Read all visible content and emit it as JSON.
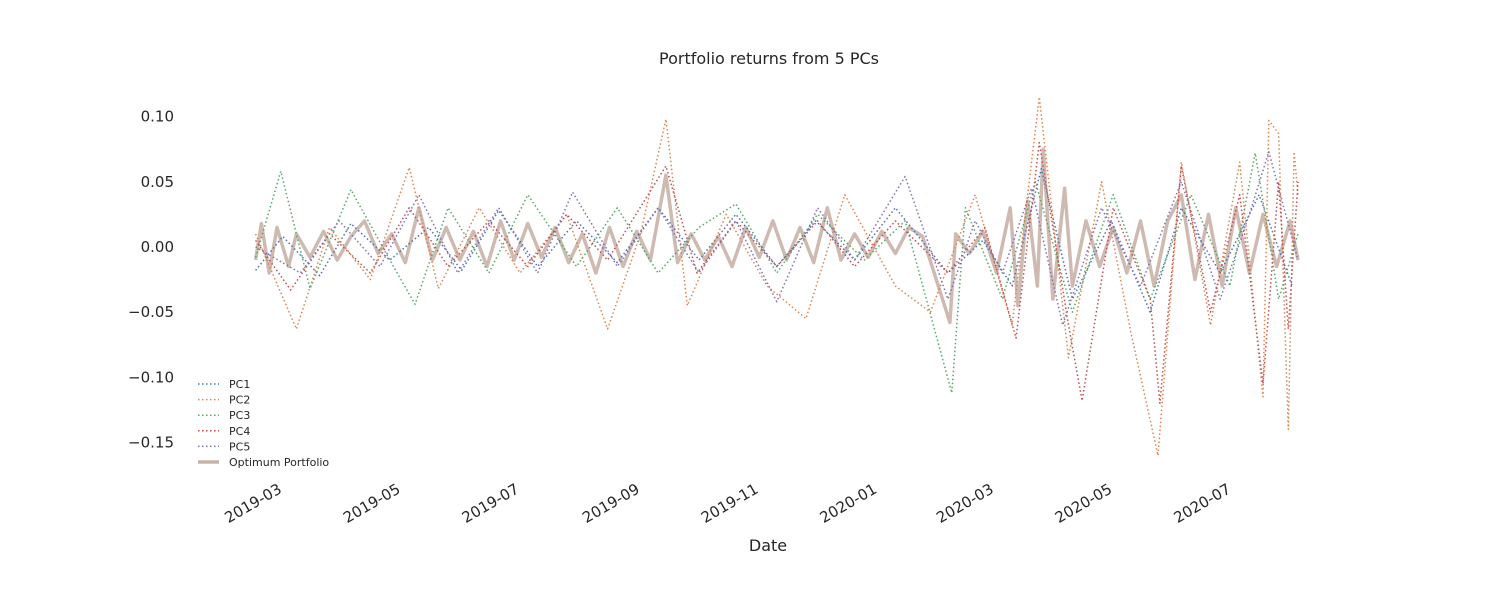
{
  "chart_data": {
    "type": "line",
    "title": "Portfolio returns from 5 PCs",
    "xlabel": "Date",
    "ylabel": "",
    "x_range": [
      "2019-02-07",
      "2020-08-04"
    ],
    "ylim": [
      -0.175,
      0.125
    ],
    "x_ticks": [
      "2019-03",
      "2019-05",
      "2019-07",
      "2019-09",
      "2019-11",
      "2020-01",
      "2020-03",
      "2020-05",
      "2020-07"
    ],
    "y_ticks": [
      "0.10",
      "0.05",
      "0.00",
      "−0.05",
      "−0.10",
      "−0.15"
    ],
    "y_tick_values": [
      0.1,
      0.05,
      0.0,
      -0.05,
      -0.1,
      -0.15
    ],
    "grid": false,
    "legend_position": "lower-left",
    "series": [
      {
        "name": "PC1",
        "color": "#4c72b0",
        "style": "dotted",
        "points": [
          [
            "2019-02-15",
            -0.018
          ],
          [
            "2019-03-01",
            0.008
          ],
          [
            "2019-03-20",
            -0.022
          ],
          [
            "2019-04-05",
            0.018
          ],
          [
            "2019-04-25",
            -0.01
          ],
          [
            "2019-05-15",
            0.015
          ],
          [
            "2019-06-01",
            -0.018
          ],
          [
            "2019-06-20",
            0.028
          ],
          [
            "2019-07-10",
            -0.015
          ],
          [
            "2019-07-30",
            0.02
          ],
          [
            "2019-08-20",
            -0.012
          ],
          [
            "2019-09-10",
            0.03
          ],
          [
            "2019-10-01",
            -0.01
          ],
          [
            "2019-10-20",
            0.025
          ],
          [
            "2019-11-10",
            -0.015
          ],
          [
            "2019-11-30",
            0.02
          ],
          [
            "2019-12-20",
            -0.01
          ],
          [
            "2020-01-10",
            0.03
          ],
          [
            "2020-02-06",
            -0.02
          ],
          [
            "2020-02-24",
            0.005
          ],
          [
            "2020-03-10",
            -0.03
          ],
          [
            "2020-03-25",
            0.06
          ],
          [
            "2020-04-10",
            -0.04
          ],
          [
            "2020-04-30",
            0.02
          ],
          [
            "2020-05-20",
            -0.05
          ],
          [
            "2020-06-05",
            0.03
          ],
          [
            "2020-06-25",
            -0.02
          ],
          [
            "2020-07-15",
            0.04
          ],
          [
            "2020-08-01",
            -0.03
          ]
        ]
      },
      {
        "name": "PC2",
        "color": "#dd8452",
        "style": "dotted",
        "points": [
          [
            "2019-02-15",
            0.01
          ],
          [
            "2019-03-08",
            -0.063
          ],
          [
            "2019-03-25",
            0.015
          ],
          [
            "2019-04-15",
            -0.025
          ],
          [
            "2019-05-05",
            0.061
          ],
          [
            "2019-05-20",
            -0.032
          ],
          [
            "2019-06-10",
            0.03
          ],
          [
            "2019-07-01",
            -0.02
          ],
          [
            "2019-07-25",
            0.025
          ],
          [
            "2019-08-15",
            -0.063
          ],
          [
            "2019-09-01",
            0.01
          ],
          [
            "2019-09-14",
            0.098
          ],
          [
            "2019-09-25",
            -0.045
          ],
          [
            "2019-10-15",
            0.025
          ],
          [
            "2019-11-05",
            -0.03
          ],
          [
            "2019-11-25",
            -0.055
          ],
          [
            "2019-12-15",
            0.04
          ],
          [
            "2020-01-10",
            -0.03
          ],
          [
            "2020-01-28",
            -0.05
          ],
          [
            "2020-02-20",
            0.04
          ],
          [
            "2020-03-10",
            -0.06
          ],
          [
            "2020-03-24",
            0.115
          ],
          [
            "2020-04-08",
            -0.085
          ],
          [
            "2020-04-25",
            0.05
          ],
          [
            "2020-05-10",
            -0.065
          ],
          [
            "2020-05-24",
            -0.16
          ],
          [
            "2020-06-05",
            0.065
          ],
          [
            "2020-06-20",
            -0.06
          ],
          [
            "2020-07-05",
            0.065
          ],
          [
            "2020-07-17",
            -0.115
          ],
          [
            "2020-07-20",
            0.097
          ],
          [
            "2020-07-25",
            0.087
          ],
          [
            "2020-07-30",
            -0.14
          ],
          [
            "2020-08-02",
            0.073
          ],
          [
            "2020-08-04",
            0.04
          ]
        ]
      },
      {
        "name": "PC3",
        "color": "#55a868",
        "style": "dotted",
        "points": [
          [
            "2019-02-15",
            -0.008
          ],
          [
            "2019-02-28",
            0.058
          ],
          [
            "2019-03-15",
            -0.032
          ],
          [
            "2019-04-05",
            0.044
          ],
          [
            "2019-04-25",
            -0.01
          ],
          [
            "2019-05-08",
            -0.044
          ],
          [
            "2019-05-25",
            0.03
          ],
          [
            "2019-06-15",
            -0.02
          ],
          [
            "2019-07-05",
            0.04
          ],
          [
            "2019-07-30",
            -0.015
          ],
          [
            "2019-08-20",
            0.03
          ],
          [
            "2019-09-10",
            -0.02
          ],
          [
            "2019-10-01",
            0.015
          ],
          [
            "2019-10-20",
            0.033
          ],
          [
            "2019-11-10",
            -0.02
          ],
          [
            "2019-12-01",
            0.025
          ],
          [
            "2019-12-25",
            -0.01
          ],
          [
            "2020-01-15",
            0.02
          ],
          [
            "2020-02-08",
            -0.112
          ],
          [
            "2020-02-15",
            0.03
          ],
          [
            "2020-03-05",
            -0.04
          ],
          [
            "2020-03-22",
            0.05
          ],
          [
            "2020-04-10",
            -0.05
          ],
          [
            "2020-05-01",
            0.04
          ],
          [
            "2020-05-20",
            -0.04
          ],
          [
            "2020-06-10",
            0.04
          ],
          [
            "2020-06-30",
            -0.03
          ],
          [
            "2020-07-13",
            0.072
          ],
          [
            "2020-07-25",
            -0.04
          ],
          [
            "2020-08-04",
            0.01
          ]
        ]
      },
      {
        "name": "PC4",
        "color": "#c44e52",
        "style": "dotted",
        "points": [
          [
            "2019-02-15",
            0.005
          ],
          [
            "2019-03-05",
            -0.033
          ],
          [
            "2019-03-25",
            0.01
          ],
          [
            "2019-04-15",
            -0.02
          ],
          [
            "2019-05-05",
            0.03
          ],
          [
            "2019-05-25",
            -0.015
          ],
          [
            "2019-06-15",
            0.02
          ],
          [
            "2019-07-05",
            -0.015
          ],
          [
            "2019-07-25",
            0.025
          ],
          [
            "2019-08-15",
            -0.01
          ],
          [
            "2019-09-14",
            0.062
          ],
          [
            "2019-09-30",
            -0.02
          ],
          [
            "2019-10-20",
            0.02
          ],
          [
            "2019-11-10",
            -0.015
          ],
          [
            "2019-12-01",
            0.02
          ],
          [
            "2019-12-20",
            -0.015
          ],
          [
            "2020-01-10",
            0.02
          ],
          [
            "2020-02-06",
            -0.02
          ],
          [
            "2020-02-25",
            0.015
          ],
          [
            "2020-03-12",
            -0.07
          ],
          [
            "2020-03-24",
            0.08
          ],
          [
            "2020-04-08",
            -0.06
          ],
          [
            "2020-04-15",
            -0.118
          ],
          [
            "2020-05-01",
            0.03
          ],
          [
            "2020-05-20",
            -0.04
          ],
          [
            "2020-05-25",
            -0.12
          ],
          [
            "2020-06-05",
            0.062
          ],
          [
            "2020-06-20",
            -0.05
          ],
          [
            "2020-07-05",
            0.04
          ],
          [
            "2020-07-17",
            -0.105
          ],
          [
            "2020-07-25",
            0.05
          ],
          [
            "2020-07-30",
            -0.063
          ],
          [
            "2020-08-04",
            0.05
          ]
        ]
      },
      {
        "name": "PC5",
        "color": "#8172b3",
        "style": "dotted",
        "points": [
          [
            "2019-02-15",
            0.0
          ],
          [
            "2019-03-10",
            -0.02
          ],
          [
            "2019-03-30",
            0.02
          ],
          [
            "2019-04-20",
            -0.015
          ],
          [
            "2019-05-10",
            0.04
          ],
          [
            "2019-05-30",
            -0.02
          ],
          [
            "2019-06-20",
            0.03
          ],
          [
            "2019-07-10",
            -0.02
          ],
          [
            "2019-07-28",
            0.042
          ],
          [
            "2019-08-20",
            -0.015
          ],
          [
            "2019-09-10",
            0.03
          ],
          [
            "2019-10-01",
            -0.02
          ],
          [
            "2019-10-20",
            0.02
          ],
          [
            "2019-11-10",
            -0.042
          ],
          [
            "2019-12-01",
            0.03
          ],
          [
            "2019-12-20",
            -0.01
          ],
          [
            "2020-01-15",
            0.054
          ],
          [
            "2020-02-06",
            -0.04
          ],
          [
            "2020-02-20",
            0.02
          ],
          [
            "2020-03-05",
            -0.02
          ],
          [
            "2020-03-20",
            0.045
          ],
          [
            "2020-04-05",
            -0.06
          ],
          [
            "2020-04-25",
            0.03
          ],
          [
            "2020-05-15",
            -0.03
          ],
          [
            "2020-06-05",
            0.05
          ],
          [
            "2020-06-25",
            -0.04
          ],
          [
            "2020-07-10",
            0.025
          ],
          [
            "2020-07-20",
            0.073
          ],
          [
            "2020-08-04",
            -0.01
          ]
        ]
      },
      {
        "name": "Optimum Portfolio",
        "color": "#c9b3a8",
        "style": "solid",
        "points": [
          [
            "2019-02-15",
            -0.01
          ],
          [
            "2019-02-18",
            0.018
          ],
          [
            "2019-02-22",
            -0.02
          ],
          [
            "2019-02-26",
            0.015
          ],
          [
            "2019-03-04",
            -0.015
          ],
          [
            "2019-03-08",
            0.01
          ],
          [
            "2019-03-15",
            -0.008
          ],
          [
            "2019-03-22",
            0.012
          ],
          [
            "2019-03-29",
            -0.01
          ],
          [
            "2019-04-05",
            0.008
          ],
          [
            "2019-04-12",
            0.02
          ],
          [
            "2019-04-19",
            -0.005
          ],
          [
            "2019-04-26",
            0.01
          ],
          [
            "2019-05-03",
            -0.012
          ],
          [
            "2019-05-10",
            0.03
          ],
          [
            "2019-05-17",
            -0.01
          ],
          [
            "2019-05-24",
            0.015
          ],
          [
            "2019-05-31",
            -0.01
          ],
          [
            "2019-06-07",
            0.012
          ],
          [
            "2019-06-14",
            -0.015
          ],
          [
            "2019-06-21",
            0.02
          ],
          [
            "2019-06-28",
            -0.01
          ],
          [
            "2019-07-05",
            0.018
          ],
          [
            "2019-07-12",
            -0.008
          ],
          [
            "2019-07-19",
            0.015
          ],
          [
            "2019-07-26",
            -0.012
          ],
          [
            "2019-08-02",
            0.01
          ],
          [
            "2019-08-09",
            -0.02
          ],
          [
            "2019-08-16",
            0.015
          ],
          [
            "2019-08-23",
            -0.015
          ],
          [
            "2019-08-30",
            0.012
          ],
          [
            "2019-09-06",
            -0.01
          ],
          [
            "2019-09-14",
            0.055
          ],
          [
            "2019-09-20",
            -0.012
          ],
          [
            "2019-09-27",
            0.01
          ],
          [
            "2019-10-04",
            -0.01
          ],
          [
            "2019-10-11",
            0.008
          ],
          [
            "2019-10-18",
            -0.015
          ],
          [
            "2019-10-25",
            0.015
          ],
          [
            "2019-11-01",
            -0.008
          ],
          [
            "2019-11-08",
            0.02
          ],
          [
            "2019-11-15",
            -0.01
          ],
          [
            "2019-11-22",
            0.015
          ],
          [
            "2019-11-29",
            -0.012
          ],
          [
            "2019-12-06",
            0.03
          ],
          [
            "2019-12-13",
            -0.01
          ],
          [
            "2019-12-20",
            0.01
          ],
          [
            "2019-12-27",
            -0.008
          ],
          [
            "2020-01-03",
            0.012
          ],
          [
            "2020-01-10",
            -0.005
          ],
          [
            "2020-01-17",
            0.015
          ],
          [
            "2020-01-24",
            0.008
          ],
          [
            "2020-02-07",
            -0.058
          ],
          [
            "2020-02-10",
            0.01
          ],
          [
            "2020-02-17",
            -0.005
          ],
          [
            "2020-02-24",
            0.012
          ],
          [
            "2020-03-02",
            -0.02
          ],
          [
            "2020-03-09",
            0.03
          ],
          [
            "2020-03-13",
            -0.045
          ],
          [
            "2020-03-18",
            0.035
          ],
          [
            "2020-03-23",
            -0.03
          ],
          [
            "2020-03-26",
            0.075
          ],
          [
            "2020-03-31",
            -0.04
          ],
          [
            "2020-04-06",
            0.045
          ],
          [
            "2020-04-10",
            -0.03
          ],
          [
            "2020-04-17",
            0.02
          ],
          [
            "2020-04-24",
            -0.015
          ],
          [
            "2020-05-01",
            0.015
          ],
          [
            "2020-05-08",
            -0.02
          ],
          [
            "2020-05-15",
            0.02
          ],
          [
            "2020-05-22",
            -0.03
          ],
          [
            "2020-05-29",
            0.02
          ],
          [
            "2020-06-05",
            0.04
          ],
          [
            "2020-06-12",
            -0.025
          ],
          [
            "2020-06-19",
            0.025
          ],
          [
            "2020-06-26",
            -0.03
          ],
          [
            "2020-07-03",
            0.03
          ],
          [
            "2020-07-10",
            -0.02
          ],
          [
            "2020-07-17",
            0.025
          ],
          [
            "2020-07-24",
            -0.015
          ],
          [
            "2020-07-31",
            0.02
          ],
          [
            "2020-08-04",
            -0.01
          ]
        ]
      }
    ]
  }
}
